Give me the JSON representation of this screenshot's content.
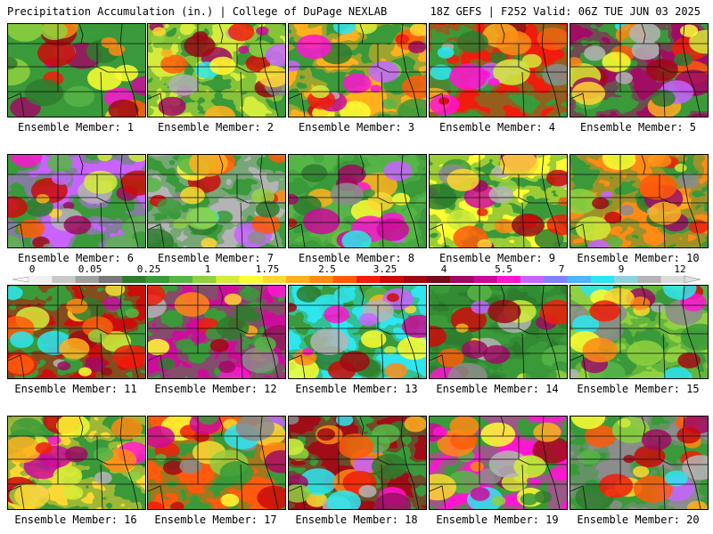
{
  "header": {
    "left": "Precipitation Accumulation (in.) | College of DuPage NEXLAB",
    "right": "18Z GEFS | F252 Valid: 06Z TUE JUN 03 2025"
  },
  "colorbar": {
    "labels": [
      "0",
      "0.05",
      "0.25",
      "1",
      "1.75",
      "2.5",
      "3.25",
      "4",
      "5.5",
      "7",
      "9",
      "12"
    ],
    "colors": [
      "#f0f0f0",
      "#c8c8c8",
      "#a0a0a0",
      "#787878",
      "#2e7d2e",
      "#3a9a3a",
      "#57b547",
      "#8fd13f",
      "#d4ec3a",
      "#ffff33",
      "#ffd733",
      "#ffb01f",
      "#ff8a14",
      "#ff5a0a",
      "#f01e0a",
      "#cc0a0a",
      "#a00a14",
      "#7a0a1e",
      "#a00a64",
      "#cc0a9a",
      "#ff14d2",
      "#c864ff",
      "#8282ff",
      "#50b4ff",
      "#2ee6f0",
      "#90d2dc",
      "#b4b4b4",
      "#dcdcdc"
    ]
  },
  "members": [
    {
      "label": "Ensemble Member: 1"
    },
    {
      "label": "Ensemble Member: 2"
    },
    {
      "label": "Ensemble Member: 3"
    },
    {
      "label": "Ensemble Member: 4"
    },
    {
      "label": "Ensemble Member: 5"
    },
    {
      "label": "Ensemble Member: 6"
    },
    {
      "label": "Ensemble Member: 7"
    },
    {
      "label": "Ensemble Member: 8"
    },
    {
      "label": "Ensemble Member: 9"
    },
    {
      "label": "Ensemble Member: 10"
    },
    {
      "label": "Ensemble Member: 11"
    },
    {
      "label": "Ensemble Member: 12"
    },
    {
      "label": "Ensemble Member: 13"
    },
    {
      "label": "Ensemble Member: 14"
    },
    {
      "label": "Ensemble Member: 15"
    },
    {
      "label": "Ensemble Member: 16"
    },
    {
      "label": "Ensemble Member: 17"
    },
    {
      "label": "Ensemble Member: 18"
    },
    {
      "label": "Ensemble Member: 19"
    },
    {
      "label": "Ensemble Member: 20"
    }
  ]
}
